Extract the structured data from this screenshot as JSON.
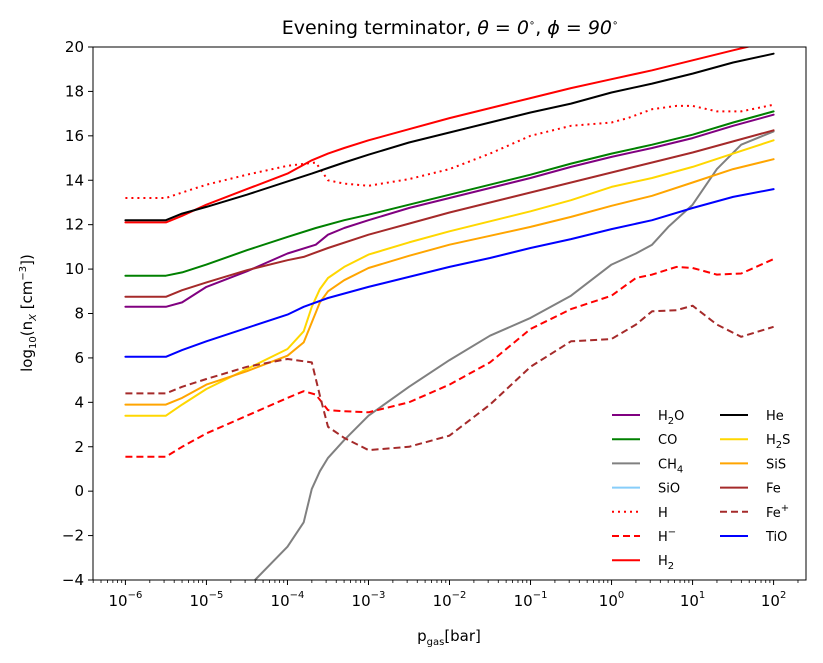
{
  "chart_data": {
    "type": "line",
    "title": "Evening terminator, θ = 0°, ϕ = 90°",
    "title_parts": {
      "prefix": "Evening terminator, ",
      "theta": "θ = 0",
      "deg1": "∘",
      "sep": ", ",
      "phi": "ϕ = 90",
      "deg2": "∘"
    },
    "xlabel": "p_gas[bar]",
    "xlabel_parts": {
      "p": "p",
      "sub": "gas",
      "unit": "[bar]"
    },
    "ylabel": "log10(n_X [cm^-3])",
    "ylabel_parts": {
      "a": "log",
      "sub10": "10",
      "b": "(n",
      "subX": "X",
      "c": " [cm",
      "sup": "−3",
      "d": "])"
    },
    "x_scale": "log",
    "xlim": [
      -6.4,
      2.4
    ],
    "ylim": [
      -4,
      20
    ],
    "x_ticks": [
      {
        "exp": -6,
        "base": "10",
        "power": "−6"
      },
      {
        "exp": -5,
        "base": "10",
        "power": "−5"
      },
      {
        "exp": -4,
        "base": "10",
        "power": "−4"
      },
      {
        "exp": -3,
        "base": "10",
        "power": "−3"
      },
      {
        "exp": -2,
        "base": "10",
        "power": "−2"
      },
      {
        "exp": -1,
        "base": "10",
        "power": "−1"
      },
      {
        "exp": 0,
        "base": "10",
        "power": "0"
      },
      {
        "exp": 1,
        "base": "10",
        "power": "1"
      },
      {
        "exp": 2,
        "base": "10",
        "power": "2"
      }
    ],
    "y_ticks": [
      -4,
      -2,
      0,
      2,
      4,
      6,
      8,
      10,
      12,
      14,
      16,
      18,
      20
    ],
    "y_tick_labels": [
      "−4",
      "−2",
      "0",
      "2",
      "4",
      "6",
      "8",
      "10",
      "12",
      "14",
      "16",
      "18",
      "20"
    ],
    "grid": false,
    "legend_position": "lower-right",
    "legend_columns": 2,
    "series": [
      {
        "name": "H2O",
        "label_main": "H",
        "label_sub": "2",
        "label_tail": "O",
        "color": "#800080",
        "dash": "solid",
        "x": [
          -6,
          -5.5,
          -5.3,
          -5,
          -4.5,
          -4,
          -3.65,
          -3.5,
          -3.3,
          -3,
          -2.5,
          -2,
          -1.5,
          -1,
          -0.5,
          0,
          0.5,
          1,
          1.5,
          2
        ],
        "y": [
          8.3,
          8.3,
          8.5,
          9.2,
          9.9,
          10.7,
          11.1,
          11.55,
          11.85,
          12.2,
          12.75,
          13.2,
          13.65,
          14.1,
          14.6,
          15.05,
          15.45,
          15.9,
          16.45,
          16.95
        ]
      },
      {
        "name": "CO",
        "label_main": "CO",
        "label_sub": "",
        "label_tail": "",
        "color": "#008000",
        "dash": "solid",
        "x": [
          -6,
          -5.5,
          -5.3,
          -5,
          -4.5,
          -4,
          -3.65,
          -3.3,
          -3,
          -2.5,
          -2,
          -1.5,
          -1,
          -0.5,
          0,
          0.5,
          1,
          1.5,
          2
        ],
        "y": [
          9.7,
          9.7,
          9.85,
          10.2,
          10.85,
          11.45,
          11.85,
          12.2,
          12.45,
          12.9,
          13.35,
          13.8,
          14.25,
          14.75,
          15.2,
          15.6,
          16.05,
          16.6,
          17.1
        ]
      },
      {
        "name": "CH4",
        "label_main": "CH",
        "label_sub": "4",
        "label_tail": "",
        "color": "#808080",
        "dash": "solid",
        "x": [
          -4.4,
          -4,
          -3.8,
          -3.7,
          -3.6,
          -3.5,
          -3.3,
          -3,
          -2.5,
          -2,
          -1.5,
          -1,
          -0.5,
          0,
          0.3,
          0.5,
          0.7,
          1,
          1.3,
          1.6,
          2
        ],
        "y": [
          -4,
          -2.5,
          -1.4,
          0.1,
          0.9,
          1.5,
          2.3,
          3.4,
          4.7,
          5.9,
          7.0,
          7.8,
          8.8,
          10.2,
          10.7,
          11.1,
          11.9,
          12.9,
          14.5,
          15.6,
          16.2
        ]
      },
      {
        "name": "SiO",
        "label_main": "SiO",
        "label_sub": "",
        "label_tail": "",
        "color": "#87cefa",
        "dash": "solid",
        "x": [],
        "y": []
      },
      {
        "name": "H",
        "label_main": "H",
        "label_sub": "",
        "label_tail": "",
        "color": "#ff0000",
        "dash": "dotted",
        "x": [
          -6,
          -5.5,
          -5.3,
          -5,
          -4.5,
          -4,
          -3.65,
          -3.5,
          -3.3,
          -3,
          -2.5,
          -2,
          -1.5,
          -1,
          -0.5,
          0,
          0.2,
          0.5,
          0.8,
          1,
          1.3,
          1.6,
          2
        ],
        "y": [
          13.2,
          13.2,
          13.45,
          13.8,
          14.25,
          14.65,
          14.8,
          14.0,
          13.85,
          13.75,
          14.05,
          14.5,
          15.2,
          16.0,
          16.45,
          16.6,
          16.8,
          17.2,
          17.35,
          17.35,
          17.1,
          17.1,
          17.4
        ]
      },
      {
        "name": "H-",
        "label_main": "H",
        "label_sup": "−",
        "label_sub": "",
        "label_tail": "",
        "color": "#ff0000",
        "dash": "dashed",
        "x": [
          -6,
          -5.5,
          -5.3,
          -5,
          -4.5,
          -4,
          -3.8,
          -3.65,
          -3.5,
          -3.3,
          -3,
          -2.5,
          -2,
          -1.5,
          -1,
          -0.5,
          0,
          0.3,
          0.5,
          0.8,
          1,
          1.3,
          1.6,
          2
        ],
        "y": [
          1.55,
          1.55,
          2.0,
          2.6,
          3.4,
          4.2,
          4.5,
          4.35,
          3.65,
          3.6,
          3.55,
          4.0,
          4.8,
          5.8,
          7.3,
          8.2,
          8.8,
          9.6,
          9.75,
          10.1,
          10.05,
          9.75,
          9.8,
          10.45
        ]
      },
      {
        "name": "H2",
        "label_main": "H",
        "label_sub": "2",
        "label_tail": "",
        "color": "#ff0000",
        "dash": "solid",
        "x": [
          -6,
          -5.5,
          -5.3,
          -5,
          -4.5,
          -4,
          -3.7,
          -3.6,
          -3.5,
          -3.3,
          -3,
          -2.5,
          -2,
          -1.5,
          -1,
          -0.5,
          0,
          0.5,
          1,
          1.5,
          1.9
        ],
        "y": [
          12.1,
          12.1,
          12.4,
          12.9,
          13.6,
          14.3,
          14.9,
          15.05,
          15.2,
          15.45,
          15.8,
          16.3,
          16.8,
          17.25,
          17.7,
          18.15,
          18.55,
          18.95,
          19.4,
          19.85,
          20.2
        ]
      },
      {
        "name": "He",
        "label_main": "He",
        "label_sub": "",
        "label_tail": "",
        "color": "#000000",
        "dash": "solid",
        "x": [
          -6,
          -5.5,
          -5.3,
          -5,
          -4.5,
          -4,
          -3.7,
          -3.5,
          -3.3,
          -3,
          -2.5,
          -2,
          -1.5,
          -1,
          -0.5,
          0,
          0.5,
          1,
          1.5,
          2
        ],
        "y": [
          12.2,
          12.2,
          12.5,
          12.8,
          13.35,
          13.95,
          14.3,
          14.55,
          14.8,
          15.15,
          15.7,
          16.15,
          16.6,
          17.05,
          17.45,
          17.95,
          18.35,
          18.8,
          19.3,
          19.7
        ]
      },
      {
        "name": "H2S",
        "label_main": "H",
        "label_sub": "2",
        "label_tail": "S",
        "color": "#ffd700",
        "dash": "solid",
        "x": [
          -6,
          -5.5,
          -5.3,
          -5,
          -4.5,
          -4,
          -3.8,
          -3.7,
          -3.6,
          -3.5,
          -3.3,
          -3,
          -2.5,
          -2,
          -1.5,
          -1,
          -0.5,
          0,
          0.5,
          1,
          1.5,
          2
        ],
        "y": [
          3.4,
          3.4,
          3.9,
          4.6,
          5.5,
          6.4,
          7.2,
          8.3,
          9.1,
          9.6,
          10.1,
          10.65,
          11.2,
          11.7,
          12.15,
          12.6,
          13.1,
          13.7,
          14.1,
          14.6,
          15.2,
          15.8
        ]
      },
      {
        "name": "SiS",
        "label_main": "SiS",
        "label_sub": "",
        "label_tail": "",
        "color": "#ffa500",
        "dash": "solid",
        "x": [
          -6,
          -5.5,
          -5.3,
          -5,
          -4.5,
          -4,
          -3.8,
          -3.7,
          -3.6,
          -3.5,
          -3.3,
          -3,
          -2.5,
          -2,
          -1.5,
          -1,
          -0.5,
          0,
          0.5,
          1,
          1.5,
          2
        ],
        "y": [
          3.9,
          3.9,
          4.2,
          4.8,
          5.4,
          6.1,
          6.7,
          7.6,
          8.5,
          9.0,
          9.5,
          10.05,
          10.6,
          11.1,
          11.5,
          11.9,
          12.35,
          12.85,
          13.3,
          13.9,
          14.5,
          14.95
        ]
      },
      {
        "name": "Fe",
        "label_main": "Fe",
        "label_sub": "",
        "label_tail": "",
        "color": "#a52a2a",
        "dash": "solid",
        "x": [
          -6,
          -5.5,
          -5.3,
          -5,
          -4.5,
          -4,
          -3.8,
          -3.5,
          -3,
          -2.5,
          -2,
          -1.5,
          -1,
          -0.5,
          0,
          0.5,
          1,
          1.5,
          2
        ],
        "y": [
          8.75,
          8.75,
          9.05,
          9.4,
          9.95,
          10.4,
          10.55,
          10.95,
          11.55,
          12.05,
          12.55,
          13.0,
          13.45,
          13.9,
          14.35,
          14.8,
          15.25,
          15.75,
          16.25
        ]
      },
      {
        "name": "Fe+",
        "label_main": "Fe",
        "label_sup": "+",
        "label_sub": "",
        "label_tail": "",
        "color": "#a52a2a",
        "dash": "dashed",
        "x": [
          -6,
          -5.5,
          -5.3,
          -5,
          -4.5,
          -4,
          -3.7,
          -3.6,
          -3.5,
          -3.3,
          -3,
          -2.5,
          -2,
          -1.5,
          -1,
          -0.5,
          0,
          0.3,
          0.5,
          0.8,
          1,
          1.3,
          1.6,
          2
        ],
        "y": [
          4.4,
          4.4,
          4.7,
          5.05,
          5.6,
          5.95,
          5.8,
          4.3,
          2.9,
          2.4,
          1.85,
          2.0,
          2.5,
          3.9,
          5.6,
          6.75,
          6.85,
          7.5,
          8.1,
          8.15,
          8.35,
          7.5,
          6.95,
          7.4
        ]
      },
      {
        "name": "TiO",
        "label_main": "TiO",
        "label_sub": "",
        "label_tail": "",
        "color": "#0000ff",
        "dash": "solid",
        "x": [
          -6,
          -5.5,
          -5.3,
          -5,
          -4.5,
          -4,
          -3.8,
          -3.5,
          -3,
          -2.5,
          -2,
          -1.5,
          -1,
          -0.5,
          0,
          0.5,
          1,
          1.5,
          2
        ],
        "y": [
          6.05,
          6.05,
          6.35,
          6.75,
          7.35,
          7.95,
          8.3,
          8.7,
          9.2,
          9.65,
          10.1,
          10.5,
          10.95,
          11.35,
          11.8,
          12.2,
          12.75,
          13.25,
          13.6
        ]
      }
    ]
  }
}
